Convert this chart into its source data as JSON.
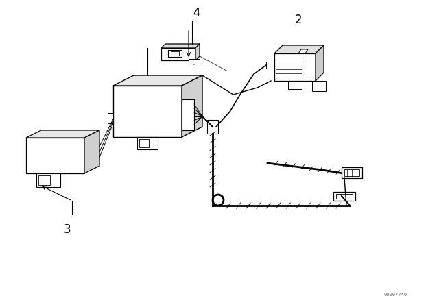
{
  "background_color": "#ffffff",
  "line_color": "#000000",
  "figure_width": 6.4,
  "figure_height": 4.48,
  "dpi": 100,
  "watermark": "000077*0",
  "label_fontsize": 12
}
